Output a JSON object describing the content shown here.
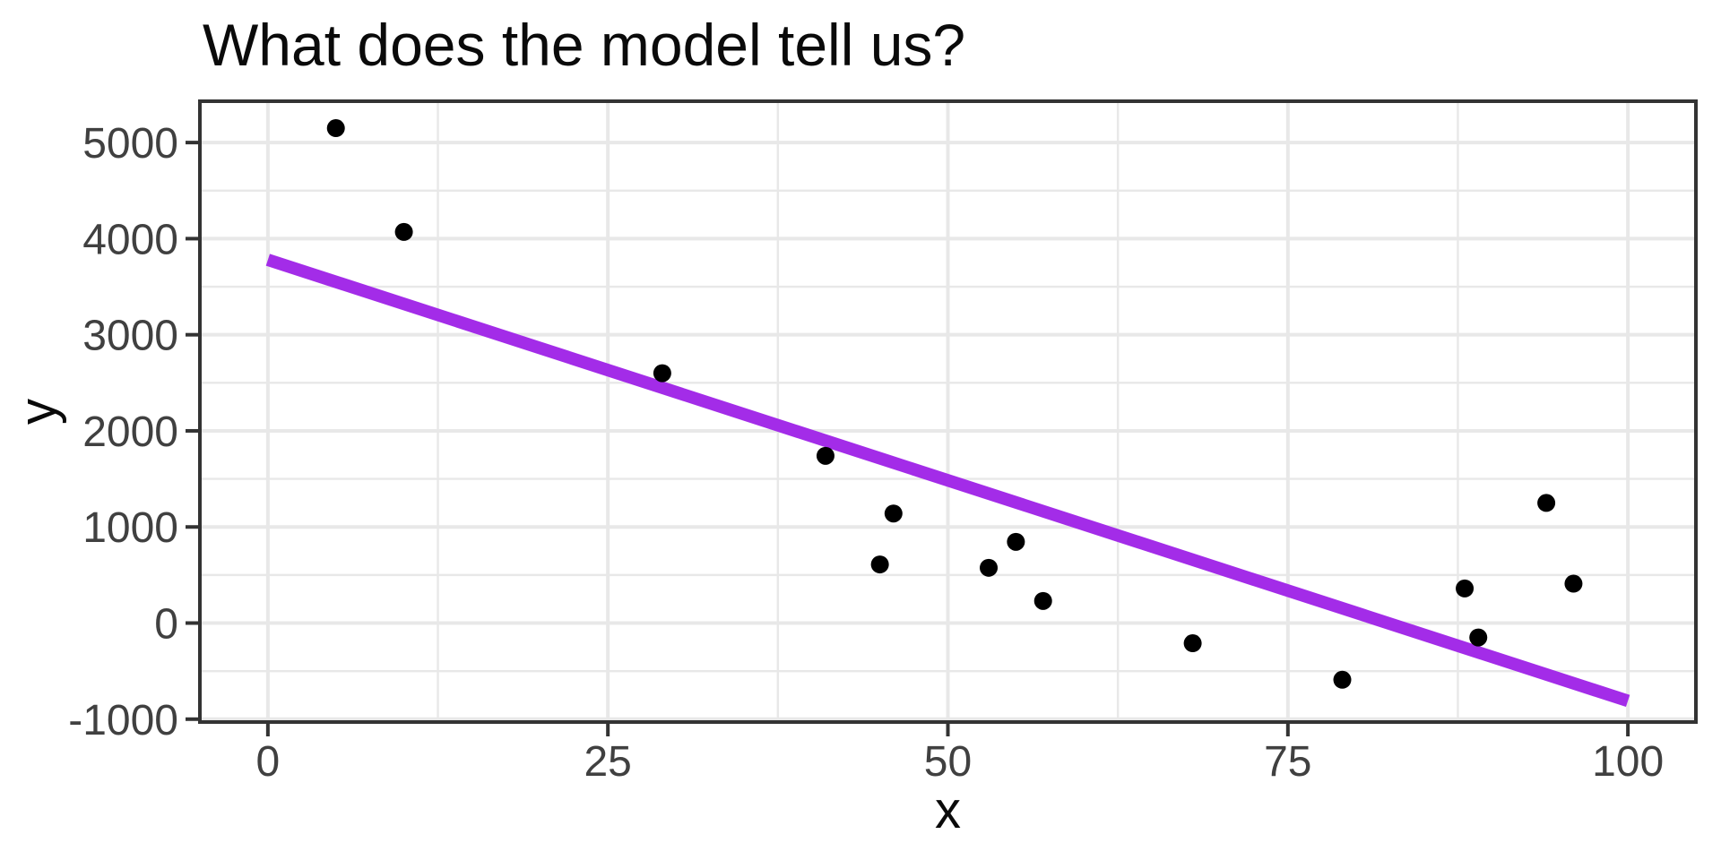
{
  "chart": {
    "title": "What does the model tell us?"
  },
  "chart_data": {
    "type": "scatter",
    "title": "What does the model tell us?",
    "xlabel": "x",
    "ylabel": "y",
    "x_ticks": [
      0,
      25,
      50,
      75,
      100
    ],
    "y_ticks": [
      -1000,
      0,
      1000,
      2000,
      3000,
      4000,
      5000
    ],
    "xlim": [
      -5,
      105
    ],
    "ylim": [
      -1030,
      5430
    ],
    "grid": "major-and-minor",
    "legend": "none",
    "theme": "ggplot-bw-white-panel-black-border",
    "points": [
      {
        "x": 5,
        "y": 5150
      },
      {
        "x": 10,
        "y": 4070
      },
      {
        "x": 29,
        "y": 2600
      },
      {
        "x": 41,
        "y": 1740
      },
      {
        "x": 45,
        "y": 610
      },
      {
        "x": 46,
        "y": 1140
      },
      {
        "x": 53,
        "y": 575
      },
      {
        "x": 55,
        "y": 845
      },
      {
        "x": 57,
        "y": 230
      },
      {
        "x": 68,
        "y": -210
      },
      {
        "x": 79,
        "y": -590
      },
      {
        "x": 88,
        "y": 360
      },
      {
        "x": 89,
        "y": -150
      },
      {
        "x": 94,
        "y": 1250
      },
      {
        "x": 96,
        "y": 410
      }
    ],
    "trend_line": {
      "x1": 0,
      "y1": 3780,
      "x2": 100,
      "y2": -810
    },
    "colors": {
      "point": "#000000",
      "trend": "#A32CE8",
      "grid": "#E8E8E8",
      "panel_border": "#333333",
      "tick_mark": "#333333",
      "tick_label": "#404040",
      "axis_title": "#0a0a0a",
      "background": "#ffffff"
    }
  }
}
